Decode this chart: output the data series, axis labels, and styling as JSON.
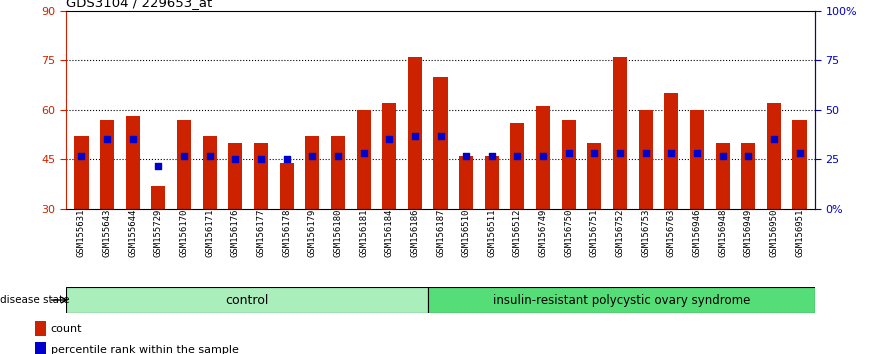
{
  "title": "GDS3104 / 229653_at",
  "categories": [
    "GSM155631",
    "GSM155643",
    "GSM155644",
    "GSM155729",
    "GSM156170",
    "GSM156171",
    "GSM156176",
    "GSM156177",
    "GSM156178",
    "GSM156179",
    "GSM156180",
    "GSM156181",
    "GSM156184",
    "GSM156186",
    "GSM156187",
    "GSM156510",
    "GSM156511",
    "GSM156512",
    "GSM156749",
    "GSM156750",
    "GSM156751",
    "GSM156752",
    "GSM156753",
    "GSM156763",
    "GSM156946",
    "GSM156948",
    "GSM156949",
    "GSM156950",
    "GSM156951"
  ],
  "red_values": [
    52,
    57,
    58,
    37,
    57,
    52,
    50,
    50,
    44,
    52,
    52,
    60,
    62,
    76,
    70,
    46,
    46,
    56,
    61,
    57,
    50,
    76,
    60,
    65,
    60,
    50,
    50,
    62,
    57
  ],
  "blue_values": [
    46,
    51,
    51,
    43,
    46,
    46,
    45,
    45,
    45,
    46,
    46,
    47,
    51,
    52,
    52,
    46,
    46,
    46,
    46,
    47,
    47,
    47,
    47,
    47,
    47,
    46,
    46,
    51,
    47
  ],
  "control_count": 14,
  "disease_count": 15,
  "ylim_left": [
    30,
    90
  ],
  "ylim_right": [
    0,
    100
  ],
  "yticks_left": [
    30,
    45,
    60,
    75,
    90
  ],
  "yticks_right": [
    0,
    25,
    50,
    75,
    100
  ],
  "ytick_labels_right": [
    "0%",
    "25",
    "50",
    "75",
    "100%"
  ],
  "bar_color": "#cc2200",
  "blue_color": "#0000cc",
  "control_label": "control",
  "disease_label": "insulin-resistant polycystic ovary syndrome",
  "disease_state_label": "disease state",
  "legend_count": "count",
  "legend_percentile": "percentile rank within the sample",
  "control_bg": "#aaeebb",
  "disease_bg": "#55dd77",
  "bar_width": 0.55
}
